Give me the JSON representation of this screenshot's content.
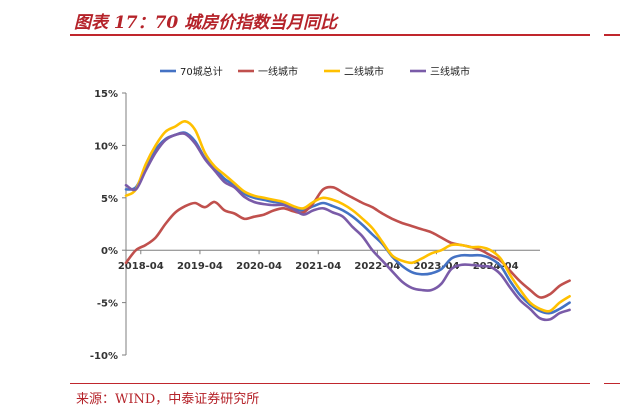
{
  "figure": {
    "title": "图表 17：70 城房价指数当月同比",
    "source": "来源：WIND，中泰证券研究所"
  },
  "chart_data": {
    "type": "line",
    "x_start": "2018-01",
    "x_step_months": 2,
    "x_ticks": [
      "2018-04",
      "2019-04",
      "2020-04",
      "2021-04",
      "2022-04",
      "2023-04",
      "2024-04"
    ],
    "y_ticks": [
      "15%",
      "10%",
      "5%",
      "0%",
      "-5%",
      "-10%"
    ],
    "ylim": [
      -10,
      15
    ],
    "grid": false,
    "legend": "top",
    "series": [
      {
        "name": "70城总计",
        "color": "#4472c4",
        "values": [
          5.8,
          6.0,
          7.8,
          9.6,
          10.6,
          11.0,
          11.2,
          10.4,
          8.8,
          7.8,
          6.8,
          6.2,
          5.4,
          5.0,
          4.8,
          4.6,
          4.5,
          4.0,
          3.8,
          4.2,
          4.5,
          4.2,
          3.8,
          3.2,
          2.4,
          1.5,
          0.6,
          -0.6,
          -1.5,
          -2.1,
          -2.3,
          -2.2,
          -1.8,
          -0.8,
          -0.5,
          -0.5,
          -0.5,
          -0.8,
          -1.5,
          -3.0,
          -4.3,
          -5.2,
          -5.8,
          -6.0,
          -5.6,
          -5.0
        ]
      },
      {
        "name": "一线城市",
        "color": "#c0504d",
        "values": [
          -1.2,
          0.0,
          0.5,
          1.2,
          2.5,
          3.6,
          4.2,
          4.5,
          4.1,
          4.6,
          3.8,
          3.5,
          3.0,
          3.2,
          3.4,
          3.8,
          4.0,
          3.7,
          3.6,
          4.5,
          5.8,
          6.0,
          5.5,
          5.0,
          4.5,
          4.1,
          3.5,
          3.0,
          2.6,
          2.3,
          2.0,
          1.7,
          1.2,
          0.7,
          0.5,
          0.3,
          0.0,
          -0.5,
          -1.0,
          -2.0,
          -3.0,
          -3.8,
          -4.5,
          -4.2,
          -3.4,
          -2.9
        ]
      },
      {
        "name": "二线城市",
        "color": "#ffc000",
        "values": [
          5.2,
          5.8,
          8.2,
          10.0,
          11.3,
          11.8,
          12.3,
          11.5,
          9.3,
          8.0,
          7.2,
          6.4,
          5.6,
          5.2,
          5.0,
          4.8,
          4.6,
          4.2,
          4.0,
          4.6,
          5.0,
          4.8,
          4.4,
          3.8,
          3.0,
          2.1,
          0.8,
          -0.5,
          -1.0,
          -1.2,
          -0.8,
          -0.3,
          0.0,
          0.5,
          0.5,
          0.3,
          0.3,
          0.0,
          -0.8,
          -2.4,
          -3.8,
          -5.0,
          -5.6,
          -5.8,
          -5.0,
          -4.4
        ]
      },
      {
        "name": "三线城市",
        "color": "#7a5ba8",
        "values": [
          6.2,
          5.8,
          7.6,
          9.3,
          10.5,
          11.0,
          11.1,
          10.2,
          8.7,
          7.6,
          6.5,
          6.0,
          5.1,
          4.6,
          4.4,
          4.3,
          4.3,
          3.9,
          3.4,
          3.8,
          4.0,
          3.6,
          3.2,
          2.2,
          1.3,
          0.0,
          -1.0,
          -2.0,
          -3.0,
          -3.6,
          -3.8,
          -3.8,
          -3.2,
          -1.8,
          -1.4,
          -1.4,
          -1.5,
          -1.6,
          -2.3,
          -3.6,
          -4.8,
          -5.6,
          -6.5,
          -6.6,
          -6.0,
          -5.7
        ]
      }
    ]
  }
}
